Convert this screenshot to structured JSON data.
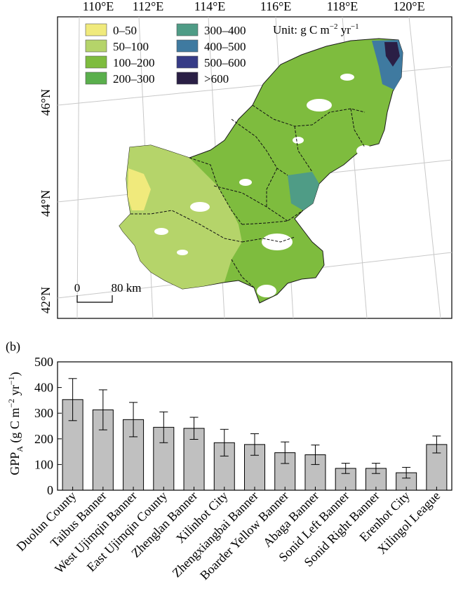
{
  "map": {
    "lon_labels": [
      "110°E",
      "112°E",
      "114°E",
      "116°E",
      "118°E",
      "120°E"
    ],
    "lat_labels": [
      "46°N",
      "44°N",
      "42°N"
    ],
    "legend": {
      "items": [
        {
          "label": "0–50",
          "color": "#f0ea7c"
        },
        {
          "label": "50–100",
          "color": "#b5d46a"
        },
        {
          "label": "100–200",
          "color": "#7ebc3e"
        },
        {
          "label": "200–300",
          "color": "#5aaf4c"
        },
        {
          "label": "300–400",
          "color": "#4f9c86"
        },
        {
          "label": "400–500",
          "color": "#3f7aa0"
        },
        {
          "label": "500–600",
          "color": "#363b86"
        },
        {
          "label": ">600",
          "color": "#2a1f45"
        }
      ],
      "unit_prefix": "Unit: g C m",
      "unit_exp1": "−2",
      "unit_mid": " yr",
      "unit_exp2": "−1"
    },
    "scalebar": {
      "zero": "0",
      "end": "80 km"
    }
  },
  "panel_b_label": "(b)",
  "chart_data": {
    "type": "bar",
    "categories": [
      "Duolun County",
      "Taibus Banner",
      "West Ujimqin Banner",
      "East Ujimqin County",
      "Zhenglan Banner",
      "Xilinhot City",
      "Zhengxiangbai Banner",
      "Boarder Yellow Banner",
      "Abaga Banner",
      "Sonid Left Banner",
      "Sonid Right Banner",
      "Erenhot City",
      "Xilingol League"
    ],
    "values": [
      353,
      313,
      275,
      245,
      241,
      185,
      178,
      146,
      138,
      85,
      85,
      68,
      178
    ],
    "errors": [
      82,
      78,
      67,
      60,
      43,
      52,
      42,
      42,
      38,
      20,
      20,
      21,
      33
    ],
    "ylim": [
      0,
      500
    ],
    "yticks": [
      0,
      100,
      200,
      300,
      400,
      500
    ],
    "ylabel": {
      "base": "GPP",
      "sub": "A",
      "rest": " (g C m",
      "exp1": "−2",
      "mid": " yr",
      "exp2": "−1",
      "end": ")"
    },
    "bar_color": "#c0c0c0",
    "grid": false
  }
}
